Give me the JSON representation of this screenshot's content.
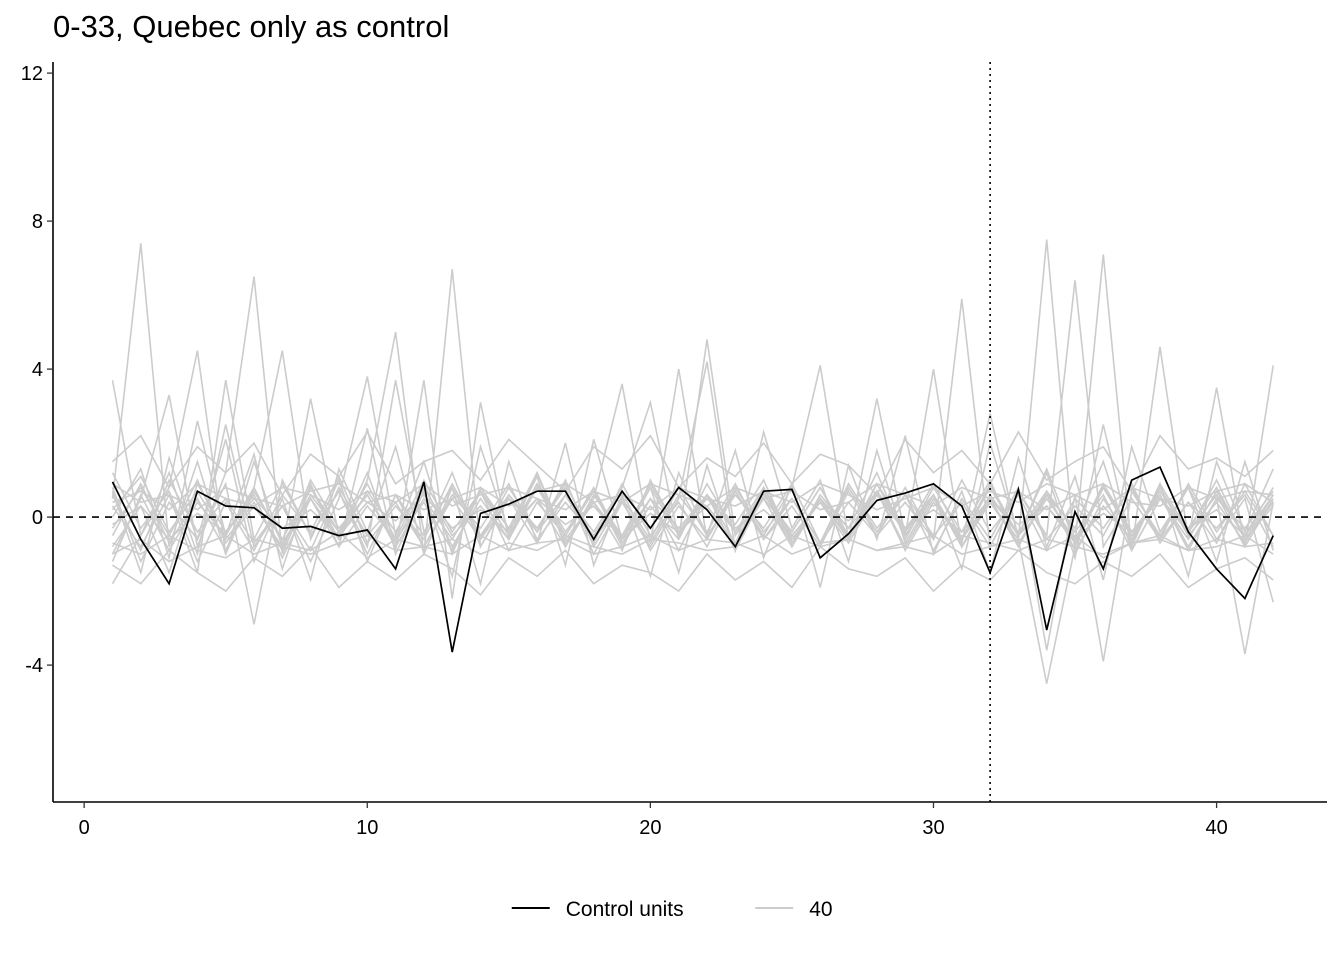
{
  "chart_data": {
    "type": "line",
    "title": "0-33, Quebec only as control",
    "xlabel": "",
    "ylabel": "",
    "xlim": [
      -1.1,
      43.9
    ],
    "ylim": [
      -7.7,
      12.3
    ],
    "x_ticks": [
      0,
      10,
      20,
      30,
      40
    ],
    "y_ticks": [
      -4,
      0,
      4,
      8,
      12
    ],
    "reference_hline": 0,
    "reference_vline": 32,
    "grid": false,
    "legend_position": "bottom",
    "legend": [
      {
        "label": "Control units",
        "color": "#000000"
      },
      {
        "label": "40",
        "color": "#cccccc"
      }
    ],
    "control_series": {
      "name": "Control units",
      "color": "#000000",
      "x": [
        1,
        2,
        3,
        4,
        5,
        6,
        7,
        8,
        9,
        10,
        11,
        12,
        13,
        14,
        15,
        16,
        17,
        18,
        19,
        20,
        21,
        22,
        23,
        24,
        25,
        26,
        27,
        28,
        29,
        30,
        31,
        32,
        33,
        34,
        35,
        36,
        37,
        38,
        39,
        40,
        41,
        42
      ],
      "values": [
        0.95,
        -0.6,
        -1.8,
        0.7,
        0.3,
        0.25,
        -0.3,
        -0.25,
        -0.5,
        -0.35,
        -1.4,
        0.95,
        -3.65,
        0.1,
        0.35,
        0.7,
        0.7,
        -0.6,
        0.7,
        -0.3,
        0.8,
        0.2,
        -0.8,
        0.7,
        0.75,
        -1.1,
        -0.45,
        0.45,
        0.65,
        0.9,
        0.3,
        -1.5,
        0.75,
        -3.05,
        0.15,
        -1.4,
        1.0,
        1.35,
        -0.4,
        -1.4,
        -2.2,
        -0.5
      ]
    },
    "placebo_series": {
      "color": "#cccccc",
      "x": [
        1,
        2,
        3,
        4,
        5,
        6,
        7,
        8,
        9,
        10,
        11,
        12,
        13,
        14,
        15,
        16,
        17,
        18,
        19,
        20,
        21,
        22,
        23,
        24,
        25,
        26,
        27,
        28,
        29,
        30,
        31,
        32,
        33,
        34,
        35,
        36,
        37,
        38,
        39,
        40,
        41,
        42
      ],
      "lines": [
        [
          3.7,
          -0.5,
          1.2,
          -1.0,
          2.5,
          -0.8,
          0.3,
          -1.2,
          0.5,
          3.8,
          -0.5,
          1.5,
          -1.0,
          0.8,
          -0.3,
          1.2,
          -0.6,
          0.4,
          -0.9,
          1.0,
          -0.4,
          0.6,
          -0.2,
          1.0,
          -0.7,
          0.5,
          -0.3,
          1.2,
          -0.6,
          0.8,
          -0.4,
          1.0,
          -0.8,
          0.6,
          -0.3,
          1.5,
          -0.9,
          0.5,
          -0.4,
          1.0,
          -0.6,
          0.3
        ],
        [
          0.5,
          7.4,
          -0.8,
          1.5,
          -1.0,
          0.8,
          4.5,
          -0.6,
          1.0,
          -1.2,
          0.6,
          -0.5,
          1.2,
          -0.8,
          0.5,
          -0.3,
          0.9,
          -0.6,
          0.4,
          -0.8,
          0.5,
          4.2,
          -0.9,
          0.6,
          -0.4,
          0.8,
          -0.5,
          0.7,
          -0.3,
          0.6,
          -0.8,
          0.4,
          -0.6,
          7.5,
          -1.0,
          0.5,
          -0.7,
          0.9,
          -0.4,
          0.6,
          -0.5,
          0.8
        ],
        [
          -1.0,
          0.5,
          3.3,
          -0.8,
          1.2,
          6.5,
          -1.0,
          0.8,
          -0.6,
          1.0,
          5.0,
          -1.0,
          6.7,
          -0.8,
          0.6,
          -0.4,
          1.0,
          -0.8,
          0.5,
          -0.6,
          0.8,
          -0.5,
          0.6,
          -0.3,
          0.9,
          -0.7,
          0.4,
          -0.5,
          0.8,
          -0.6,
          5.9,
          -0.8,
          0.7,
          -0.5,
          6.4,
          -0.8,
          0.5,
          -0.6,
          0.9,
          -0.4,
          0.7,
          -0.5
        ],
        [
          -1.8,
          -0.5,
          0.8,
          4.5,
          -1.0,
          1.5,
          -0.8,
          3.2,
          -0.5,
          1.2,
          -0.9,
          3.7,
          -2.2,
          3.1,
          -0.6,
          1.2,
          -0.8,
          0.5,
          3.6,
          -0.7,
          4.0,
          -0.6,
          0.7,
          -0.5,
          0.8,
          4.1,
          -0.6,
          3.2,
          -0.5,
          4.0,
          -0.8,
          0.6,
          -0.5,
          1.3,
          -0.7,
          7.1,
          -0.9,
          4.6,
          -0.6,
          3.5,
          -0.8,
          4.1
        ],
        [
          0.3,
          -0.8,
          0.6,
          -1.5,
          3.7,
          -0.6,
          0.9,
          -0.5,
          0.7,
          -0.8,
          3.7,
          -0.4,
          0.8,
          -0.6,
          0.5,
          -0.7,
          0.6,
          -0.4,
          0.8,
          3.1,
          -0.6,
          4.8,
          -0.5,
          0.7,
          -0.8,
          0.5,
          -0.6,
          0.9,
          -0.4,
          0.6,
          -0.7,
          2.8,
          -0.6,
          -4.5,
          -0.8,
          0.8,
          -0.5,
          0.6,
          -0.9,
          0.5,
          -3.7,
          0.4
        ],
        [
          -0.5,
          0.9,
          -0.7,
          0.5,
          -0.9,
          0.7,
          -0.6,
          0.8,
          -0.4,
          0.6,
          -0.8,
          0.5,
          -0.6,
          0.7,
          -0.5,
          0.9,
          -0.7,
          0.4,
          -0.6,
          0.8,
          -0.5,
          0.6,
          -0.7,
          0.5,
          -0.4,
          0.8,
          -0.6,
          0.7,
          -0.8,
          0.5,
          -0.6,
          0.9,
          -0.5,
          0.6,
          -0.7,
          0.8,
          -0.4,
          0.5,
          -0.6,
          0.7,
          -0.5,
          0.6
        ],
        [
          0.8,
          -1.2,
          0.4,
          -0.6,
          0.9,
          -2.9,
          1.0,
          -0.5,
          0.7,
          -1.0,
          0.6,
          -0.8,
          0.5,
          -0.6,
          0.8,
          -0.4,
          0.6,
          -0.7,
          0.9,
          -0.5,
          0.4,
          -0.8,
          0.7,
          -0.6,
          0.5,
          -0.7,
          0.8,
          -0.4,
          0.6,
          -0.9,
          0.5,
          -0.6,
          0.8,
          -3.6,
          0.6,
          -3.9,
          0.7,
          -0.5,
          0.8,
          -0.6,
          0.5,
          -2.3
        ],
        [
          -1.2,
          0.6,
          -0.9,
          0.4,
          -0.5,
          0.8,
          -0.7,
          0.5,
          -0.6,
          0.7,
          -0.4,
          0.9,
          -0.8,
          0.5,
          -0.6,
          0.8,
          -0.5,
          0.7,
          -0.6,
          0.5,
          -0.9,
          0.6,
          -0.4,
          0.8,
          -0.7,
          0.5,
          -0.6,
          0.9,
          -0.5,
          0.6,
          -0.8,
          0.4,
          -0.7,
          0.5,
          -0.6,
          0.8,
          -0.5,
          0.7,
          -0.4,
          0.6,
          -0.8,
          0.5
        ],
        [
          0.2,
          1.1,
          -0.4,
          0.7,
          -0.6,
          0.4,
          -0.9,
          1.0,
          -0.3,
          0.6,
          -0.7,
          0.8,
          -0.5,
          0.3,
          -0.6,
          0.9,
          -0.4,
          0.7,
          -0.8,
          0.5,
          -0.3,
          0.6,
          -0.9,
          0.8,
          -0.5,
          0.4,
          -0.7,
          0.6,
          -0.4,
          0.9,
          -0.6,
          0.5,
          -0.8,
          0.7,
          -0.4,
          0.6,
          -0.9,
          0.5,
          -0.3,
          0.8,
          -0.6,
          0.4
        ],
        [
          -0.8,
          0.3,
          -1.5,
          0.9,
          -0.4,
          0.6,
          -1.1,
          0.5,
          -0.8,
          0.3,
          -0.6,
          1.0,
          -0.4,
          0.7,
          -0.9,
          0.4,
          -0.5,
          0.8,
          -0.7,
          0.3,
          -0.6,
          0.9,
          -0.4,
          0.5,
          -0.8,
          0.6,
          -0.3,
          0.7,
          -0.9,
          0.4,
          -0.6,
          0.8,
          -0.5,
          0.3,
          -0.7,
          0.9,
          -0.4,
          0.6,
          -0.8,
          0.5,
          -0.3,
          0.7
        ],
        [
          1.2,
          -0.3,
          0.7,
          -1.2,
          0.4,
          -0.9,
          0.6,
          -0.4,
          1.1,
          -0.7,
          0.3,
          -0.6,
          0.9,
          -0.5,
          0.6,
          -0.3,
          0.8,
          -1.0,
          0.4,
          -0.7,
          0.6,
          -0.4,
          0.9,
          -0.6,
          0.3,
          -0.8,
          0.7,
          -0.5,
          0.4,
          -0.6,
          1.0,
          -0.4,
          0.6,
          -0.9,
          0.5,
          -0.3,
          0.8,
          -0.6,
          0.4,
          -0.7,
          0.9,
          -0.5
        ],
        [
          -0.3,
          0.8,
          -0.5,
          1.0,
          -0.7,
          0.3,
          -0.8,
          0.6,
          -0.4,
          0.9,
          -0.6,
          0.4,
          -0.9,
          0.7,
          -0.3,
          0.5,
          -0.8,
          0.6,
          -0.5,
          0.9,
          -0.4,
          0.3,
          -0.7,
          0.8,
          -0.6,
          0.4,
          -0.5,
          0.9,
          -0.3,
          0.6,
          -0.8,
          0.5,
          -0.4,
          0.7,
          -0.9,
          0.3,
          -0.6,
          0.8,
          -0.5,
          0.4,
          -0.7,
          0.6
        ],
        [
          0.6,
          -0.9,
          1.0,
          -0.4,
          0.5,
          -0.7,
          0.3,
          -0.9,
          0.8,
          -0.5,
          0.4,
          -0.8,
          0.6,
          -0.3,
          0.9,
          -0.6,
          0.4,
          -0.5,
          0.7,
          -0.9,
          0.3,
          -0.6,
          0.8,
          -0.4,
          0.5,
          -0.7,
          0.9,
          -0.3,
          0.6,
          -0.5,
          0.4,
          -0.8,
          0.7,
          -0.6,
          0.3,
          -0.5,
          0.9,
          -0.7,
          0.4,
          -0.3,
          0.6,
          -0.8
        ],
        [
          -1.0,
          -0.6,
          -1.2,
          -0.8,
          -0.5,
          -1.0,
          -0.7,
          -0.9,
          -0.4,
          -1.1,
          -0.6,
          -0.8,
          -1.0,
          -0.5,
          -0.9,
          -0.7,
          -0.6,
          -1.0,
          -0.8,
          -0.5,
          -0.9,
          -0.6,
          -0.7,
          -1.0,
          -0.5,
          -0.8,
          -0.6,
          -0.9,
          -0.7,
          -0.5,
          -1.0,
          -0.8,
          -0.6,
          -0.9,
          -0.5,
          -1.1,
          -0.7,
          -0.6,
          -0.9,
          -0.8,
          -0.5,
          -1.0
        ],
        [
          -0.7,
          -1.0,
          -0.5,
          -0.9,
          -1.1,
          -0.6,
          -0.8,
          -1.0,
          -0.7,
          -0.5,
          -0.9,
          -0.8,
          -0.6,
          -1.0,
          -0.7,
          -0.9,
          -0.5,
          -0.8,
          -1.0,
          -0.6,
          -0.7,
          -0.9,
          -0.8,
          -0.5,
          -1.0,
          -0.7,
          -0.6,
          -0.9,
          -0.8,
          -1.0,
          -0.5,
          -0.7,
          -0.9,
          -0.6,
          -0.8,
          -1.0,
          -0.7,
          -0.5,
          -0.9,
          -0.6,
          -0.8,
          -0.7
        ],
        [
          0.4,
          0.7,
          0.2,
          0.9,
          0.5,
          0.3,
          0.8,
          0.6,
          0.2,
          0.7,
          0.4,
          0.9,
          0.3,
          0.6,
          0.8,
          0.5,
          0.2,
          0.7,
          0.4,
          0.9,
          0.6,
          0.3,
          0.8,
          0.5,
          0.7,
          0.2,
          0.4,
          0.9,
          0.6,
          0.3,
          0.8,
          0.5,
          0.7,
          0.2,
          0.6,
          0.9,
          0.4,
          0.3,
          0.8,
          0.5,
          0.7,
          0.6
        ],
        [
          0.9,
          0.4,
          0.6,
          0.2,
          0.8,
          0.5,
          0.3,
          0.7,
          0.9,
          0.4,
          0.6,
          0.2,
          0.5,
          0.8,
          0.3,
          0.7,
          0.9,
          0.4,
          0.6,
          0.2,
          0.8,
          0.5,
          0.3,
          0.7,
          0.4,
          0.9,
          0.6,
          0.2,
          0.5,
          0.8,
          0.3,
          0.7,
          0.4,
          0.9,
          0.6,
          0.2,
          0.8,
          0.5,
          0.3,
          0.7,
          0.9,
          0.4
        ],
        [
          -0.2,
          0.3,
          -0.6,
          0.1,
          -0.4,
          0.5,
          -0.3,
          0.2,
          -0.5,
          0.4,
          -0.1,
          0.6,
          -0.3,
          0.2,
          -0.4,
          0.5,
          -0.2,
          0.3,
          -0.6,
          0.1,
          -0.4,
          0.5,
          -0.3,
          0.2,
          -0.5,
          0.4,
          -0.1,
          0.6,
          -0.3,
          0.2,
          -0.4,
          0.5,
          -0.2,
          0.3,
          -0.6,
          0.1,
          -0.4,
          0.5,
          -0.3,
          0.2,
          -0.5,
          0.4
        ],
        [
          1.5,
          2.2,
          0.8,
          1.9,
          1.2,
          2.0,
          0.6,
          1.7,
          1.1,
          2.3,
          0.9,
          1.5,
          1.8,
          1.0,
          2.1,
          1.4,
          0.7,
          1.9,
          1.3,
          2.2,
          0.8,
          1.6,
          1.1,
          2.0,
          0.9,
          1.7,
          1.4,
          0.6,
          2.1,
          1.2,
          1.8,
          0.9,
          2.3,
          1.0,
          1.5,
          1.9,
          0.7,
          2.2,
          1.3,
          1.6,
          1.1,
          1.8
        ],
        [
          -1.3,
          -1.8,
          -0.9,
          -1.5,
          -2.0,
          -1.1,
          -1.6,
          -0.8,
          -1.9,
          -1.2,
          -1.7,
          -1.0,
          -1.4,
          -2.1,
          -1.1,
          -1.6,
          -0.9,
          -1.8,
          -1.3,
          -1.5,
          -2.0,
          -1.0,
          -1.7,
          -1.2,
          -1.9,
          -0.8,
          -1.4,
          -1.6,
          -1.1,
          -2.0,
          -1.3,
          -1.7,
          -0.9,
          -1.5,
          -1.8,
          -1.2,
          -1.6,
          -1.0,
          -1.9,
          -1.4,
          -1.1,
          -1.7
        ],
        [
          0.0,
          1.3,
          -1.1,
          2.6,
          -0.5,
          1.7,
          -1.4,
          0.9,
          -0.8,
          2.4,
          -1.0,
          0.7,
          -1.6,
          1.9,
          -0.4,
          1.1,
          -1.3,
          2.1,
          -0.6,
          0.8,
          -1.5,
          1.4,
          -0.9,
          2.3,
          -0.3,
          1.0,
          -1.2,
          1.8,
          -0.7,
          0.6,
          -1.4,
          2.0,
          -0.5,
          1.2,
          -1.1,
          2.5,
          -0.8,
          0.9,
          -1.6,
          1.5,
          -0.4,
          1.3
        ],
        [
          0.7,
          -1.5,
          1.6,
          -0.6,
          2.1,
          -1.2,
          0.5,
          -1.7,
          1.3,
          -0.4,
          1.9,
          -1.0,
          0.8,
          -1.8,
          1.5,
          -0.7,
          2.0,
          -1.3,
          0.6,
          -1.6,
          1.2,
          -0.5,
          1.8,
          -1.1,
          0.9,
          -1.9,
          1.4,
          -0.6,
          2.2,
          -1.0,
          0.7,
          -1.5,
          1.6,
          -0.8,
          1.1,
          -1.7,
          1.9,
          -0.4,
          0.8,
          -1.2,
          1.5,
          -0.9
        ]
      ]
    }
  }
}
